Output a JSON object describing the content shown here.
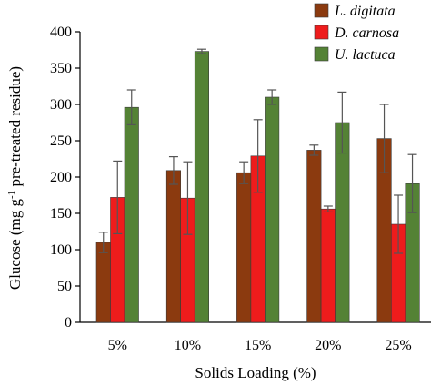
{
  "chart_data": {
    "type": "bar",
    "xlabel": "Solids Loading (%)",
    "ylabel": {
      "before": "Glucose (mg g",
      "sup": "-1",
      "after": " pre-treated residue)"
    },
    "ylim": [
      0,
      400
    ],
    "yticks": [
      0,
      50,
      100,
      150,
      200,
      250,
      300,
      350,
      400
    ],
    "grid": false,
    "legend_position": "top-right",
    "categories": [
      "5%",
      "10%",
      "15%",
      "20%",
      "25%"
    ],
    "series": [
      {
        "name": "L. digitata",
        "color": "#8b3a0f",
        "values": [
          110,
          209,
          206,
          237,
          253
        ],
        "errors": [
          14,
          19,
          15,
          7,
          47
        ]
      },
      {
        "name": "D. carnosa",
        "color": "#ee1c1c",
        "values": [
          172,
          171,
          229,
          156,
          135
        ],
        "errors": [
          50,
          50,
          50,
          4,
          40
        ]
      },
      {
        "name": "U. lactuca",
        "color": "#548235",
        "values": [
          296,
          373,
          310,
          275,
          191
        ],
        "errors": [
          24,
          3,
          10,
          42,
          40
        ]
      }
    ]
  }
}
